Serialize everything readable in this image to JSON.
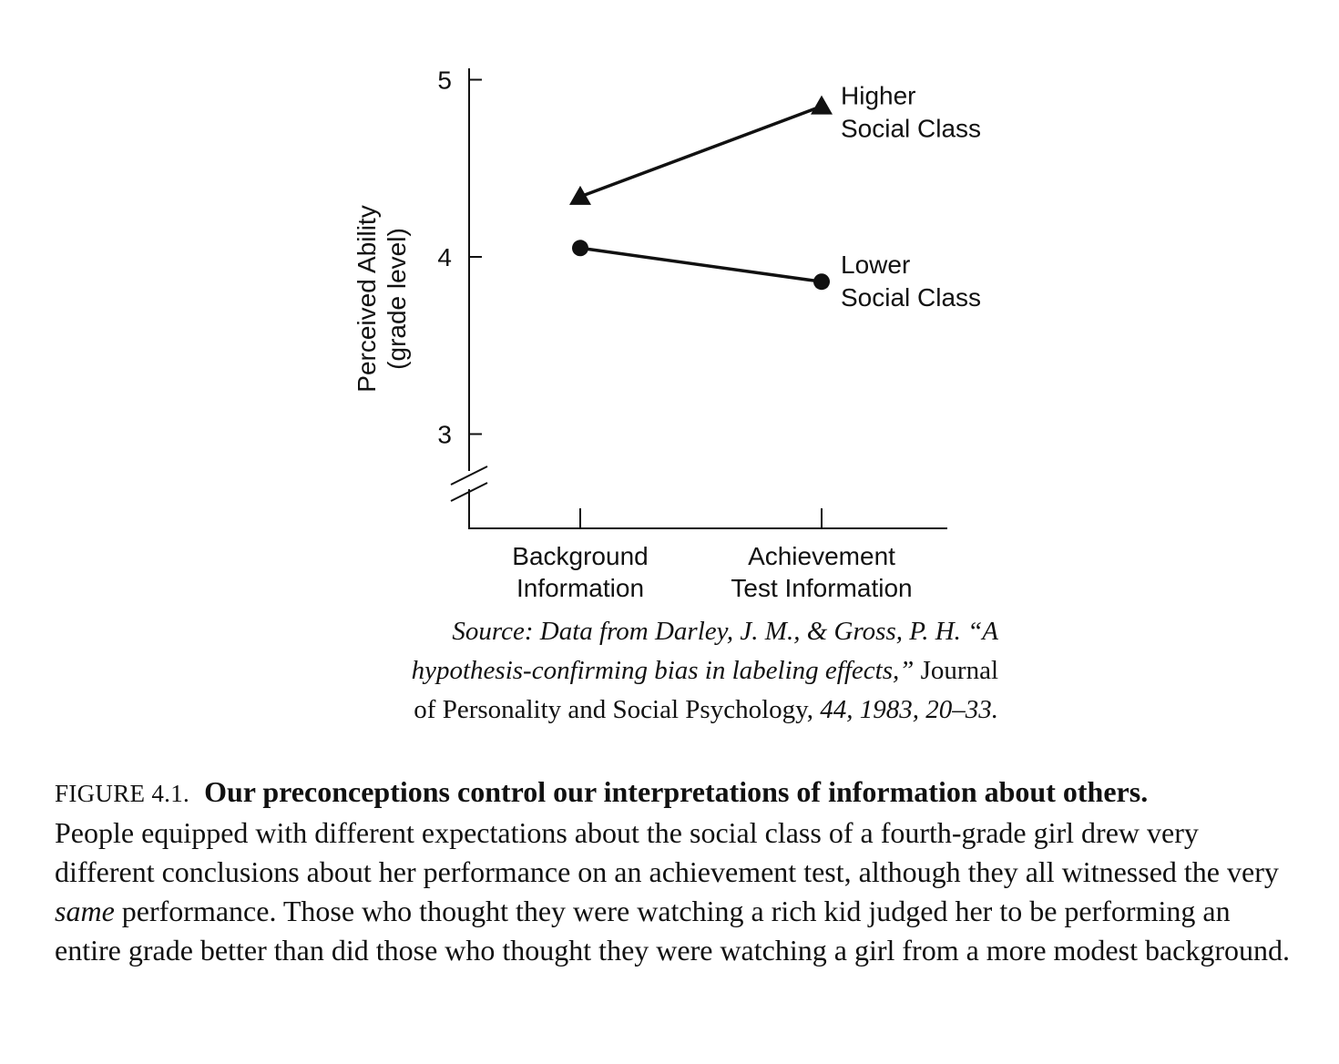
{
  "chart_data": {
    "type": "line",
    "categories": [
      "Background Information",
      "Achievement Test Information"
    ],
    "category_lines": [
      [
        "Background",
        "Information"
      ],
      [
        "Achievement",
        "Test Information"
      ]
    ],
    "ylabel_lines": [
      "Perceived Ability",
      "(grade level)"
    ],
    "y_ticks": [
      3,
      4,
      5
    ],
    "y_tick_labels": [
      "3",
      "4",
      "5"
    ],
    "ylim": [
      2.5,
      5
    ],
    "axis_break": true,
    "grid": false,
    "series": [
      {
        "name": "Higher Social Class",
        "label_lines": [
          "Higher",
          "Social Class"
        ],
        "marker": "triangle",
        "values": [
          4.34,
          4.85
        ]
      },
      {
        "name": "Lower Social Class",
        "label_lines": [
          "Lower",
          "Social Class"
        ],
        "marker": "circle",
        "values": [
          4.05,
          3.86
        ]
      }
    ]
  },
  "source": {
    "line1": "Source: Data from Darley, J. M., & Gross, P. H. “A",
    "line2_italic": "hypothesis-confirming bias in labeling effects,”",
    "line2_normal": " Journal",
    "line3_normal": "of Personality and Social Psychology,",
    "line3_italic": " 44, 1983, 20–33."
  },
  "caption": {
    "figure_label": "FIGURE 4.1.",
    "title": "Our preconceptions control our interpretations of information about others.",
    "body_before": "People equipped with different expectations about the social class of a fourth-grade girl drew very different conclusions about her performance on an achievement test, although they all witnessed the very ",
    "body_emphasis": "same",
    "body_after": " performance. Those who thought they were watching a rich kid judged her to be performing an entire grade better than did those who thought they were watching a girl from a more modest background."
  }
}
